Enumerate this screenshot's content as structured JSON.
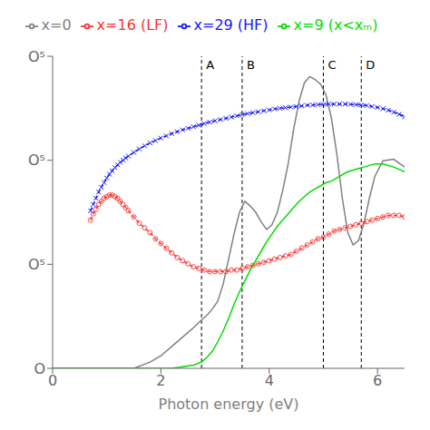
{
  "chart_data": {
    "type": "line",
    "xlabel": "Photon energy (eV)",
    "xlim": [
      0,
      6.5
    ],
    "xticks": [
      0,
      2,
      4,
      6
    ],
    "ylim": [
      0,
      1.0
    ],
    "yticks": [
      {
        "value": 0.0,
        "label": "O"
      },
      {
        "value": 0.3333333333333333,
        "label": "O⁵"
      },
      {
        "value": 0.6666666666666666,
        "label": "O⁵"
      },
      {
        "value": 1.0,
        "label": "O⁵"
      }
    ],
    "grid": false,
    "legend": "top",
    "annotations": [
      {
        "x": 2.75,
        "text": "A",
        "line_style": "dashed",
        "color": "#000000"
      },
      {
        "x": 3.5,
        "text": "B",
        "line_style": "dashed",
        "color": "#000000"
      },
      {
        "x": 5.0,
        "text": "C",
        "line_style": "dashed",
        "color": "#000000"
      },
      {
        "x": 5.7,
        "text": "D",
        "line_style": "dashed",
        "color": "#000000"
      }
    ],
    "series": [
      {
        "name": "x=0",
        "color": "#808080",
        "line_style": "solid",
        "marker": "none",
        "x": [
          0.0,
          0.5,
          1.0,
          1.5,
          1.8,
          2.0,
          2.2,
          2.4,
          2.6,
          2.75,
          2.85,
          2.95,
          3.05,
          3.15,
          3.25,
          3.35,
          3.45,
          3.55,
          3.65,
          3.75,
          3.85,
          3.95,
          4.05,
          4.15,
          4.25,
          4.35,
          4.45,
          4.55,
          4.65,
          4.75,
          4.85,
          4.95,
          5.05,
          5.15,
          5.25,
          5.35,
          5.45,
          5.55,
          5.65,
          5.75,
          5.85,
          5.95,
          6.1,
          6.3,
          6.5
        ],
        "values": [
          0.0,
          0.0,
          0.0,
          0.0,
          0.02,
          0.04,
          0.07,
          0.1,
          0.13,
          0.155,
          0.17,
          0.19,
          0.215,
          0.27,
          0.35,
          0.43,
          0.5,
          0.535,
          0.52,
          0.5,
          0.47,
          0.445,
          0.46,
          0.5,
          0.57,
          0.655,
          0.765,
          0.855,
          0.915,
          0.935,
          0.925,
          0.91,
          0.875,
          0.8,
          0.685,
          0.545,
          0.435,
          0.395,
          0.41,
          0.465,
          0.545,
          0.615,
          0.665,
          0.67,
          0.645
        ]
      },
      {
        "name": "x=9 (x<xₘ)",
        "color": "#00dd00",
        "line_style": "solid",
        "marker": "none",
        "x": [
          0.0,
          0.5,
          1.0,
          1.5,
          1.8,
          2.0,
          2.2,
          2.4,
          2.6,
          2.75,
          2.85,
          2.95,
          3.05,
          3.15,
          3.25,
          3.35,
          3.45,
          3.55,
          3.65,
          3.75,
          3.85,
          3.95,
          4.05,
          4.15,
          4.25,
          4.35,
          4.45,
          4.55,
          4.65,
          4.75,
          4.85,
          4.95,
          5.05,
          5.15,
          5.25,
          5.35,
          5.45,
          5.55,
          5.65,
          5.75,
          5.85,
          5.95,
          6.1,
          6.3,
          6.5
        ],
        "values": [
          0.0,
          0.0,
          0.0,
          0.0,
          0.0,
          0.0,
          0.0,
          0.005,
          0.01,
          0.02,
          0.035,
          0.055,
          0.085,
          0.12,
          0.16,
          0.205,
          0.245,
          0.28,
          0.315,
          0.345,
          0.375,
          0.405,
          0.43,
          0.455,
          0.475,
          0.495,
          0.515,
          0.535,
          0.55,
          0.565,
          0.575,
          0.585,
          0.595,
          0.6,
          0.61,
          0.62,
          0.63,
          0.635,
          0.64,
          0.645,
          0.65,
          0.655,
          0.655,
          0.645,
          0.63
        ]
      },
      {
        "name": "x=16 (LF)",
        "color": "#ff3030",
        "line_style": "dashed",
        "marker": "circle",
        "x": [
          0.7,
          0.75,
          0.8,
          0.85,
          0.9,
          0.95,
          1.0,
          1.05,
          1.1,
          1.15,
          1.2,
          1.25,
          1.3,
          1.35,
          1.4,
          1.5,
          1.6,
          1.7,
          1.8,
          1.9,
          2.0,
          2.1,
          2.2,
          2.3,
          2.4,
          2.5,
          2.6,
          2.7,
          2.8,
          2.9,
          3.0,
          3.1,
          3.2,
          3.3,
          3.4,
          3.5,
          3.6,
          3.7,
          3.8,
          3.9,
          4.0,
          4.1,
          4.2,
          4.3,
          4.4,
          4.5,
          4.6,
          4.7,
          4.8,
          4.9,
          5.0,
          5.1,
          5.2,
          5.3,
          5.4,
          5.5,
          5.6,
          5.7,
          5.8,
          5.9,
          6.0,
          6.1,
          6.2,
          6.3,
          6.4,
          6.5
        ],
        "values": [
          0.475,
          0.495,
          0.51,
          0.525,
          0.535,
          0.545,
          0.55,
          0.555,
          0.555,
          0.55,
          0.545,
          0.535,
          0.525,
          0.515,
          0.505,
          0.485,
          0.465,
          0.45,
          0.435,
          0.415,
          0.4,
          0.385,
          0.37,
          0.355,
          0.345,
          0.335,
          0.325,
          0.32,
          0.315,
          0.31,
          0.31,
          0.31,
          0.31,
          0.315,
          0.315,
          0.32,
          0.325,
          0.33,
          0.335,
          0.34,
          0.345,
          0.35,
          0.355,
          0.36,
          0.365,
          0.375,
          0.385,
          0.395,
          0.405,
          0.415,
          0.42,
          0.43,
          0.44,
          0.445,
          0.45,
          0.455,
          0.46,
          0.465,
          0.47,
          0.475,
          0.48,
          0.485,
          0.49,
          0.49,
          0.49,
          0.485
        ]
      },
      {
        "name": "x=29 (HF)",
        "color": "#1515ff",
        "line_style": "dashed",
        "marker": "x",
        "x": [
          0.7,
          0.75,
          0.8,
          0.85,
          0.9,
          0.95,
          1.0,
          1.05,
          1.1,
          1.15,
          1.2,
          1.25,
          1.3,
          1.35,
          1.4,
          1.5,
          1.6,
          1.7,
          1.8,
          1.9,
          2.0,
          2.1,
          2.2,
          2.3,
          2.4,
          2.5,
          2.6,
          2.7,
          2.8,
          2.9,
          3.0,
          3.1,
          3.2,
          3.3,
          3.4,
          3.5,
          3.6,
          3.7,
          3.8,
          3.9,
          4.0,
          4.1,
          4.2,
          4.3,
          4.4,
          4.5,
          4.6,
          4.7,
          4.8,
          4.9,
          5.0,
          5.1,
          5.2,
          5.3,
          5.4,
          5.5,
          5.6,
          5.7,
          5.8,
          5.9,
          6.0,
          6.1,
          6.2,
          6.3,
          6.4,
          6.5
        ],
        "values": [
          0.505,
          0.525,
          0.545,
          0.565,
          0.58,
          0.595,
          0.61,
          0.622,
          0.633,
          0.643,
          0.652,
          0.66,
          0.667,
          0.674,
          0.68,
          0.692,
          0.703,
          0.713,
          0.722,
          0.73,
          0.738,
          0.745,
          0.752,
          0.758,
          0.764,
          0.769,
          0.774,
          0.779,
          0.784,
          0.789,
          0.793,
          0.797,
          0.801,
          0.805,
          0.809,
          0.813,
          0.816,
          0.819,
          0.822,
          0.825,
          0.828,
          0.831,
          0.833,
          0.835,
          0.837,
          0.839,
          0.841,
          0.843,
          0.844,
          0.845,
          0.846,
          0.847,
          0.847,
          0.847,
          0.847,
          0.846,
          0.845,
          0.844,
          0.842,
          0.839,
          0.836,
          0.832,
          0.827,
          0.821,
          0.814,
          0.806
        ]
      }
    ]
  }
}
